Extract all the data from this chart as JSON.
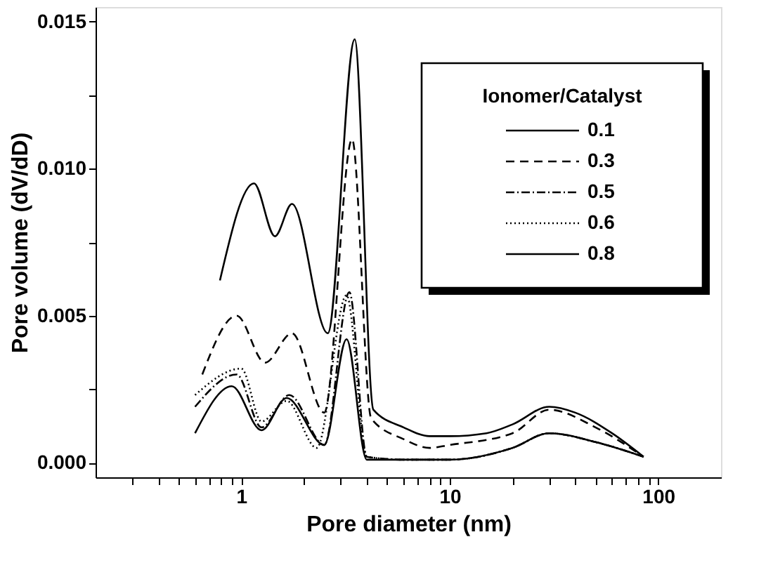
{
  "chart_data": {
    "type": "line",
    "xlabel": "Pore diameter (nm)",
    "ylabel": "Pore volume (dV/dD)",
    "legend_title": "Ionomer/Catalyst",
    "legend": "top right",
    "log": "x",
    "grid": false,
    "xlim": [
      0.2,
      200
    ],
    "ylim": [
      -0.0005,
      0.0155
    ],
    "xticks": [
      {
        "value": 0.3,
        "label": null
      },
      {
        "value": 0.4,
        "label": null
      },
      {
        "value": 0.5,
        "label": null
      },
      {
        "value": 0.6,
        "label": null
      },
      {
        "value": 0.7,
        "label": null
      },
      {
        "value": 0.8,
        "label": null
      },
      {
        "value": 0.9,
        "label": null
      },
      1,
      {
        "value": 2,
        "label": null
      },
      {
        "value": 3,
        "label": null
      },
      {
        "value": 4,
        "label": null
      },
      {
        "value": 5,
        "label": null
      },
      {
        "value": 6,
        "label": null
      },
      {
        "value": 7,
        "label": null
      },
      {
        "value": 8,
        "label": null
      },
      {
        "value": 9,
        "label": null
      },
      10,
      {
        "value": 20,
        "label": null
      },
      {
        "value": 30,
        "label": null
      },
      {
        "value": 40,
        "label": null
      },
      {
        "value": 50,
        "label": null
      },
      {
        "value": 60,
        "label": null
      },
      {
        "value": 70,
        "label": null
      },
      {
        "value": 80,
        "label": null
      },
      {
        "value": 90,
        "label": null
      },
      100
    ],
    "yticks": [
      {
        "value": 0,
        "label": "0.000"
      },
      {
        "value": 0.0025,
        "label": null
      },
      {
        "value": 0.005,
        "label": "0.005"
      },
      {
        "value": 0.0075,
        "label": null
      },
      {
        "value": 0.01,
        "label": "0.010"
      },
      {
        "value": 0.0125,
        "label": null
      },
      {
        "value": 0.015,
        "label": "0.015"
      }
    ],
    "series": [
      {
        "name": "0.1",
        "color": "#000000",
        "line_style": "solid",
        "x": [
          0.79,
          1.15,
          1.45,
          1.75,
          2.6,
          3.5,
          4.3,
          6,
          8,
          10,
          15,
          20,
          30,
          40,
          60,
          85
        ],
        "values": [
          0.0062,
          0.0095,
          0.0077,
          0.0088,
          0.0044,
          0.0144,
          0.0018,
          0.0012,
          0.0009,
          0.0009,
          0.001,
          0.0013,
          0.0019,
          0.0017,
          0.001,
          0.0002
        ]
      },
      {
        "name": "0.3",
        "color": "#000000",
        "line_style": "dashed",
        "x": [
          0.65,
          0.95,
          1.3,
          1.75,
          2.5,
          3.4,
          4.2,
          6,
          8,
          10,
          20,
          30,
          50,
          85
        ],
        "values": [
          0.003,
          0.005,
          0.0034,
          0.0044,
          0.0017,
          0.011,
          0.0015,
          0.0008,
          0.0005,
          0.0006,
          0.001,
          0.0018,
          0.0012,
          0.0002
        ]
      },
      {
        "name": "0.5",
        "color": "#000000",
        "line_style": "dashdot",
        "x": [
          0.6,
          0.95,
          1.25,
          1.7,
          2.5,
          3.3,
          4.0,
          6,
          10,
          20,
          30,
          50,
          85
        ],
        "values": [
          0.0019,
          0.003,
          0.0012,
          0.0023,
          0.0006,
          0.0058,
          0.0002,
          0.0001,
          0.0001,
          0.0005,
          0.001,
          0.0007,
          0.0002
        ]
      },
      {
        "name": "0.6",
        "color": "#000000",
        "line_style": "dotted",
        "x": [
          0.6,
          1.0,
          1.25,
          1.65,
          2.3,
          3.2,
          4.0,
          6,
          10,
          20,
          30,
          50,
          85
        ],
        "values": [
          0.0023,
          0.0032,
          0.0014,
          0.0021,
          0.0005,
          0.0057,
          0.0002,
          0.0001,
          0.0001,
          0.0005,
          0.001,
          0.0007,
          0.0002
        ]
      },
      {
        "name": "0.8",
        "color": "#000000",
        "line_style": "solid",
        "x": [
          0.6,
          0.9,
          1.25,
          1.65,
          2.5,
          3.2,
          4.0,
          6,
          10,
          20,
          30,
          50,
          85
        ],
        "values": [
          0.001,
          0.0026,
          0.0011,
          0.0022,
          0.0006,
          0.0042,
          0.0001,
          0.0001,
          0.0001,
          0.0005,
          0.001,
          0.0007,
          0.0002
        ]
      }
    ]
  }
}
